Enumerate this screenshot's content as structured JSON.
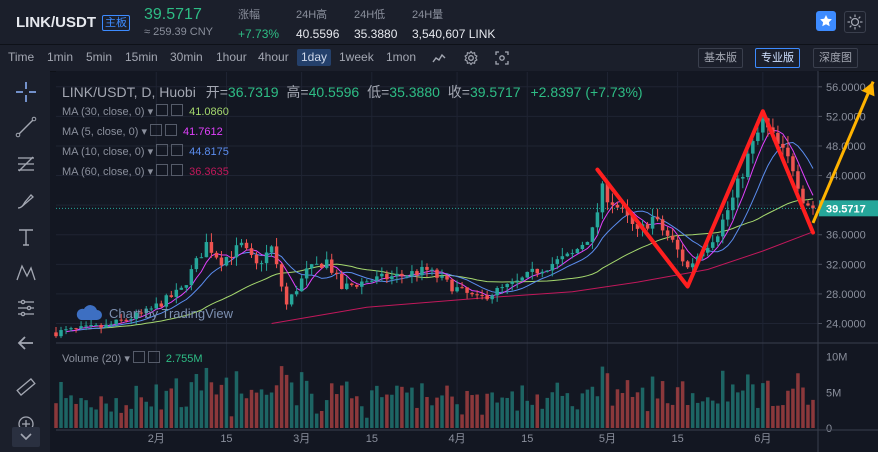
{
  "header": {
    "pair": "LINK/USDT",
    "board": "主板",
    "price": "39.5717",
    "cny": "≈ 259.39 CNY",
    "stats": [
      {
        "label": "涨幅",
        "value": "+7.73%",
        "up": true
      },
      {
        "label": "24H高",
        "value": "40.5596",
        "up": false
      },
      {
        "label": "24H低",
        "value": "35.3880",
        "up": false
      },
      {
        "label": "24H量",
        "value": "3,540,607 LINK",
        "up": false
      }
    ],
    "star_icon": "star-icon",
    "theme_icon": "sun-icon"
  },
  "toolbar": {
    "timeframes": [
      "Time",
      "1min",
      "5min",
      "15min",
      "30min",
      "1hour",
      "4hour",
      "1day",
      "1week",
      "1mon"
    ],
    "active_timeframe": "1day",
    "icons": [
      "indicators-icon",
      "settings-icon",
      "screenshot-icon"
    ],
    "views": [
      "基本版",
      "专业版",
      "深度图"
    ],
    "active_view": "专业版"
  },
  "left_tools": [
    "crosshair-icon",
    "trendline-icon",
    "fib-icon",
    "brush-icon",
    "text-icon",
    "pattern-icon",
    "measure-icon",
    "arrow-back-icon",
    "ruler-icon",
    "zoom-in-icon",
    "collapse-icon"
  ],
  "legend": {
    "title": "LINK/USDT, D, Huobi",
    "open_label": "开=",
    "open": "36.7319",
    "high_label": "高=",
    "high": "40.5596",
    "low_label": "低=",
    "low": "35.3880",
    "close_label": "收=",
    "close": "39.5717",
    "change": "+2.8397 (+7.73%)"
  },
  "indicators": [
    {
      "label": "MA (30, close, 0)",
      "value": "41.0860",
      "color": "#a5d86e"
    },
    {
      "label": "MA (5, close, 0)",
      "value": "41.7612",
      "color": "#e040fb"
    },
    {
      "label": "MA (10, close, 0)",
      "value": "44.8175",
      "color": "#5b8def"
    },
    {
      "label": "MA (60, close, 0)",
      "value": "36.3635",
      "color": "#c2185b"
    }
  ],
  "volume_label": "Volume (20)",
  "volume_value": "2.755M",
  "watermark": "Chart by TradingView",
  "colors": {
    "up": "#26a69a",
    "down": "#ef5350",
    "price_line": "#26a69a",
    "drawing_red": "#ff1f1f",
    "drawing_yellow": "#ffb300"
  },
  "chart_data": {
    "type": "candlestick",
    "price_axis": {
      "ticks": [
        24,
        28,
        32,
        36,
        40,
        44,
        48,
        52,
        56
      ],
      "tick_labels": [
        "24.0000",
        "28.0000",
        "32.0000",
        "36.0000",
        "40.0000",
        "44.0000",
        "48.0000",
        "52.0000",
        "56.0000"
      ],
      "range": [
        21.5,
        58
      ]
    },
    "volume_axis": {
      "ticks": [
        0,
        5,
        10
      ],
      "tick_labels": [
        "0",
        "5M",
        "10M"
      ],
      "range": [
        0,
        11.5
      ]
    },
    "date_axis": {
      "range": [
        "2020-01-12",
        "2020-06-12"
      ],
      "ticks": [
        "2020-02-01",
        "2020-02-15",
        "2020-03-01",
        "2020-03-15",
        "2020-04-01",
        "2020-04-15",
        "2020-05-01",
        "2020-05-15",
        "2020-06-01"
      ],
      "tick_labels": [
        "2月",
        "15",
        "3月",
        "15",
        "4月",
        "15",
        "5月",
        "15",
        "6月"
      ]
    },
    "last_price": 39.5717,
    "close_anchors": [
      [
        "2020-01-12",
        22.8
      ],
      [
        "2020-01-22",
        23.6
      ],
      [
        "2020-01-30",
        25.5
      ],
      [
        "2020-02-06",
        28.5
      ],
      [
        "2020-02-11",
        34.8
      ],
      [
        "2020-02-14",
        32.5
      ],
      [
        "2020-02-18",
        34.5
      ],
      [
        "2020-02-21",
        31.8
      ],
      [
        "2020-02-24",
        34.2
      ],
      [
        "2020-02-27",
        26.5
      ],
      [
        "2020-03-02",
        31.0
      ],
      [
        "2020-03-06",
        32.5
      ],
      [
        "2020-03-09",
        28.8
      ],
      [
        "2020-03-14",
        29.8
      ],
      [
        "2020-03-20",
        30.4
      ],
      [
        "2020-03-26",
        31.2
      ],
      [
        "2020-03-31",
        29.0
      ],
      [
        "2020-04-05",
        27.3
      ],
      [
        "2020-04-09",
        28.4
      ],
      [
        "2020-04-13",
        29.5
      ],
      [
        "2020-04-17",
        31.2
      ],
      [
        "2020-04-24",
        33.3
      ],
      [
        "2020-04-28",
        36.4
      ],
      [
        "2020-04-30",
        42.0
      ],
      [
        "2020-05-04",
        39.0
      ],
      [
        "2020-05-07",
        36.2
      ],
      [
        "2020-05-10",
        38.3
      ],
      [
        "2020-05-14",
        35.0
      ],
      [
        "2020-05-17",
        31.5
      ],
      [
        "2020-05-20",
        34.1
      ],
      [
        "2020-05-23",
        36.4
      ],
      [
        "2020-05-26",
        40.8
      ],
      [
        "2020-05-29",
        46.5
      ],
      [
        "2020-06-01",
        51.2
      ],
      [
        "2020-06-03",
        49.0
      ],
      [
        "2020-06-05",
        47.0
      ],
      [
        "2020-06-07",
        45.2
      ],
      [
        "2020-06-09",
        41.0
      ],
      [
        "2020-06-11",
        39.57
      ]
    ],
    "ma60_anchors": [
      [
        "2020-02-24",
        24.0
      ],
      [
        "2020-03-14",
        26.2
      ],
      [
        "2020-04-05",
        27.4
      ],
      [
        "2020-04-24",
        28.3
      ],
      [
        "2020-05-07",
        29.6
      ],
      [
        "2020-05-21",
        31.3
      ],
      [
        "2020-06-01",
        33.8
      ],
      [
        "2020-06-11",
        36.4
      ]
    ],
    "drawings": {
      "red_zigzag": [
        [
          "2020-04-29",
          44.8
        ],
        [
          "2020-05-17",
          29.0
        ],
        [
          "2020-06-01",
          52.7
        ],
        [
          "2020-06-11",
          36.3
        ]
      ],
      "yellow_arrow": [
        [
          "2020-06-11",
          37.6
        ],
        [
          "2020-06-23",
          56.7
        ]
      ]
    }
  }
}
